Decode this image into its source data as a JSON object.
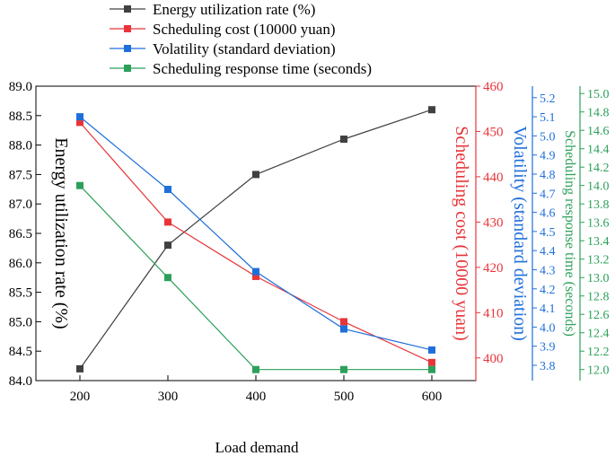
{
  "chart_data": {
    "type": "line",
    "x": [
      200,
      300,
      400,
      500,
      600
    ],
    "x_ticks": [
      200,
      300,
      400,
      500,
      600
    ],
    "x_range": [
      150,
      650
    ],
    "xlabel": "Load demand",
    "legend_position": "top",
    "series": [
      {
        "name": "Energy utilization rate (%)",
        "axis": "left",
        "color": "#404040",
        "values": [
          84.2,
          86.3,
          87.5,
          88.1,
          88.6
        ]
      },
      {
        "name": "Scheduling cost (10000 yuan)",
        "axis": "right1",
        "color": "#e8353a",
        "values": [
          452,
          430,
          418,
          408,
          399
        ]
      },
      {
        "name": "Volatility (standard deviation)",
        "axis": "right2",
        "color": "#1f6fdb",
        "values": [
          5.1,
          4.72,
          4.29,
          3.99,
          3.88
        ]
      },
      {
        "name": "Scheduling response time (seconds)",
        "axis": "right3",
        "color": "#2ca05a",
        "values": [
          14.0,
          13.0,
          12.0,
          12.0,
          12.0
        ]
      }
    ],
    "axes": {
      "left": {
        "label": "Energy utilization rate (%)",
        "range": [
          84.0,
          89.0
        ],
        "ticks": [
          "84.0",
          "84.5",
          "85.0",
          "85.5",
          "86.0",
          "86.5",
          "87.0",
          "87.5",
          "88.0",
          "88.5",
          "89.0"
        ],
        "color": "#000000"
      },
      "right1": {
        "label": "Scheduling cost (10000 yuan)",
        "range": [
          395,
          460
        ],
        "ticks": [
          "400",
          "410",
          "420",
          "430",
          "440",
          "450",
          "460"
        ],
        "color": "#e8353a"
      },
      "right2": {
        "label": "Volatility (standard deviation)",
        "range": [
          3.72,
          5.26
        ],
        "ticks": [
          "3.8",
          "3.9",
          "4.0",
          "4.1",
          "4.2",
          "4.3",
          "4.4",
          "4.5",
          "4.6",
          "4.7",
          "4.8",
          "4.9",
          "5.0",
          "5.1",
          "5.2"
        ],
        "color": "#1f6fdb"
      },
      "right3": {
        "label": "Scheduling response time (seconds)",
        "range": [
          11.88,
          15.08
        ],
        "ticks": [
          "12.0",
          "12.2",
          "12.4",
          "12.6",
          "12.8",
          "13.0",
          "13.2",
          "13.4",
          "13.6",
          "13.8",
          "14.0",
          "14.2",
          "14.4",
          "14.6",
          "14.8",
          "15.0"
        ],
        "color": "#2ca05a"
      }
    }
  }
}
